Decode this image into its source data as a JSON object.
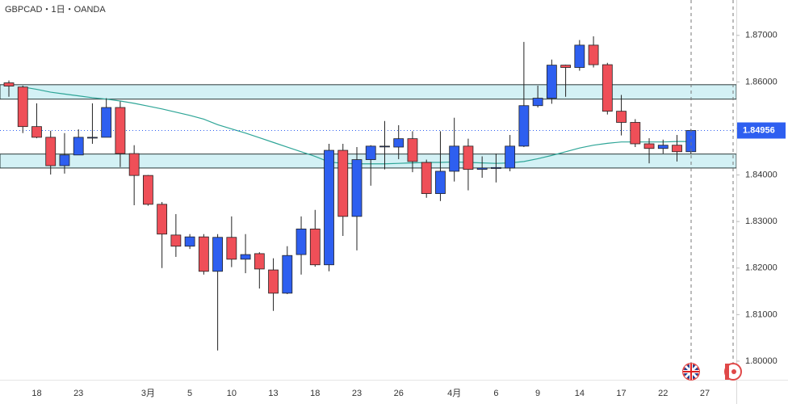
{
  "chart_data": {
    "type": "candlestick",
    "title": "GBPCAD・1日・OANDA",
    "up_color": "#2e5ff0",
    "down_color": "#ef4f58",
    "open": [
      1.8598,
      1.8589,
      1.8504,
      1.8481,
      1.842,
      1.8443,
      1.848,
      1.8481,
      1.8545,
      1.8446,
      1.8399,
      1.8337,
      1.8271,
      1.8247,
      1.8267,
      1.8193,
      1.8266,
      1.8219,
      1.8231,
      1.8196,
      1.8146,
      1.8229,
      1.8284,
      1.8207,
      1.8453,
      1.8311,
      1.8433,
      1.8461,
      1.846,
      1.8478,
      1.8427,
      1.836,
      1.8408,
      1.8462,
      1.8412,
      1.8414,
      1.8415,
      1.8462,
      1.8549,
      1.8565,
      1.8636,
      1.8631,
      1.8679,
      1.8637,
      1.8537,
      1.8513,
      1.8467,
      1.8457,
      1.8464,
      1.845
    ],
    "high": [
      1.8603,
      1.8592,
      1.8554,
      1.8495,
      1.849,
      1.8498,
      1.8554,
      1.8565,
      1.8558,
      1.8464,
      1.84,
      1.8342,
      1.8316,
      1.8273,
      1.8273,
      1.8273,
      1.8311,
      1.8273,
      1.8234,
      1.8221,
      1.8247,
      1.8311,
      1.8325,
      1.8467,
      1.8467,
      1.846,
      1.8464,
      1.8516,
      1.8507,
      1.8494,
      1.8433,
      1.8494,
      1.8523,
      1.8478,
      1.844,
      1.8446,
      1.8486,
      1.8686,
      1.8592,
      1.8648,
      1.8637,
      1.869,
      1.8698,
      1.8641,
      1.8572,
      1.852,
      1.8479,
      1.8476,
      1.8486,
      1.8499
    ],
    "low": [
      1.8568,
      1.849,
      1.8479,
      1.8401,
      1.8403,
      1.8443,
      1.8467,
      1.8481,
      1.8417,
      1.8335,
      1.8334,
      1.82,
      1.8224,
      1.8241,
      1.8186,
      1.8023,
      1.8202,
      1.8189,
      1.8156,
      1.8108,
      1.8144,
      1.8186,
      1.8203,
      1.8193,
      1.8269,
      1.8238,
      1.8377,
      1.8412,
      1.8434,
      1.8406,
      1.8351,
      1.8344,
      1.8386,
      1.8367,
      1.8394,
      1.8384,
      1.8408,
      1.846,
      1.8545,
      1.8553,
      1.8568,
      1.8624,
      1.8631,
      1.853,
      1.8485,
      1.846,
      1.8425,
      1.8446,
      1.8429,
      1.8446
    ],
    "close": [
      1.8591,
      1.8504,
      1.8481,
      1.842,
      1.8443,
      1.8481,
      1.8481,
      1.8545,
      1.8446,
      1.8399,
      1.8337,
      1.8273,
      1.8247,
      1.8267,
      1.8193,
      1.8266,
      1.8219,
      1.8229,
      1.8198,
      1.8146,
      1.8227,
      1.8284,
      1.8207,
      1.8453,
      1.8311,
      1.8433,
      1.8462,
      1.8462,
      1.8478,
      1.8429,
      1.836,
      1.8408,
      1.8462,
      1.8412,
      1.8415,
      1.8416,
      1.8462,
      1.8549,
      1.8565,
      1.8636,
      1.8631,
      1.8679,
      1.8637,
      1.8537,
      1.8513,
      1.8467,
      1.8457,
      1.8464,
      1.845,
      1.84956
    ],
    "moving_average": {
      "color": "#2ea597",
      "values": [
        null,
        1.8589,
        1.8584,
        1.8578,
        1.8574,
        1.857,
        1.8566,
        1.8563,
        1.8559,
        1.8554,
        1.8548,
        1.8542,
        1.8535,
        1.8528,
        1.852,
        1.8508,
        1.8499,
        1.849,
        1.848,
        1.847,
        1.846,
        1.845,
        1.844,
        1.8428,
        1.8425,
        1.8424,
        1.8424,
        1.8424,
        1.8425,
        1.8426,
        1.8427,
        1.8427,
        1.8428,
        1.8427,
        1.8426,
        1.8425,
        1.8426,
        1.8429,
        1.8435,
        1.8442,
        1.845,
        1.8458,
        1.8464,
        1.8468,
        1.8471,
        1.8471,
        1.8471,
        1.8471,
        1.8472,
        1.8472
      ]
    },
    "zones": [
      {
        "low": 1.8563,
        "high": 1.8594,
        "color": "#d3f1f5"
      },
      {
        "low": 1.8415,
        "high": 1.8445,
        "color": "#d3f1f5"
      }
    ],
    "last_price": 1.84956,
    "last_price_color": "#2e5ff0",
    "ylim": [
      1.796,
      1.8776
    ],
    "yticks": [
      {
        "value": 1.8,
        "label": "1.80000"
      },
      {
        "value": 1.81,
        "label": "1.81000"
      },
      {
        "value": 1.82,
        "label": "1.82000"
      },
      {
        "value": 1.83,
        "label": "1.83000"
      },
      {
        "value": 1.84,
        "label": "1.84000"
      },
      {
        "value": 1.85,
        "label": "1.85000"
      },
      {
        "value": 1.86,
        "label": "1.86000"
      },
      {
        "value": 1.87,
        "label": "1.87000"
      }
    ],
    "xticks": [
      {
        "value": 2,
        "label": "18"
      },
      {
        "value": 5,
        "label": "23"
      },
      {
        "value": 10,
        "label": "3月"
      },
      {
        "value": 13,
        "label": "5"
      },
      {
        "value": 16,
        "label": "10"
      },
      {
        "value": 19,
        "label": "13"
      },
      {
        "value": 22,
        "label": "18"
      },
      {
        "value": 25,
        "label": "23"
      },
      {
        "value": 28,
        "label": "26"
      },
      {
        "value": 32,
        "label": "4月"
      },
      {
        "value": 35,
        "label": "6"
      },
      {
        "value": 38,
        "label": "9"
      },
      {
        "value": 41,
        "label": "14"
      },
      {
        "value": 44,
        "label": "17"
      },
      {
        "value": 47,
        "label": "22"
      },
      {
        "value": 50,
        "label": "27"
      }
    ]
  }
}
